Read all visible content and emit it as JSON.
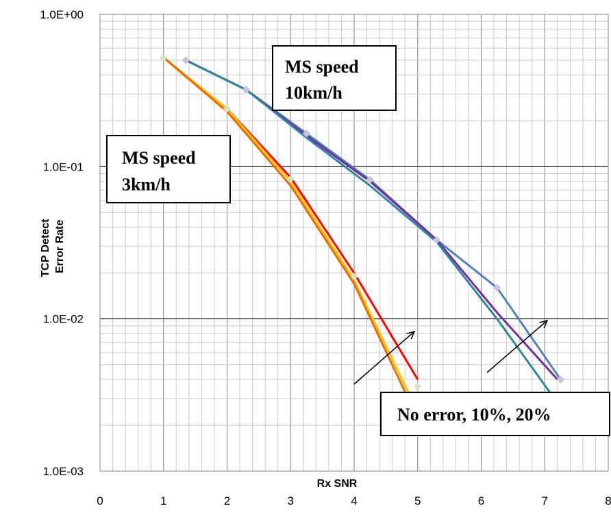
{
  "chart_data": {
    "type": "line",
    "title": "",
    "xlabel": "Rx SNR",
    "ylabel_lines": [
      "TCP Detect",
      "Error Rate"
    ],
    "x_scale": "linear",
    "y_scale": "log",
    "xlim": [
      0,
      8
    ],
    "ylim": [
      0.001,
      1
    ],
    "x_ticks": [
      "0",
      "1",
      "2",
      "3",
      "4",
      "5",
      "6",
      "7",
      "8"
    ],
    "y_ticks": [
      {
        "value": 1,
        "label": "1.0E+00"
      },
      {
        "value": 0.1,
        "label": "1.0E-01"
      },
      {
        "value": 0.01,
        "label": "1.0E-02"
      },
      {
        "value": 0.001,
        "label": "1.0E-03"
      }
    ],
    "grid": true,
    "legend": "none",
    "series": [
      {
        "color": "#FF0000",
        "marker": false,
        "x": [
          1,
          2,
          3,
          4,
          5
        ],
        "y": [
          0.52,
          0.24,
          0.085,
          0.02,
          0.004
        ]
      },
      {
        "color": "#FFC000",
        "marker": false,
        "x": [
          1,
          2,
          3,
          4,
          4.9
        ],
        "y": [
          0.52,
          0.24,
          0.08,
          0.018,
          0.003
        ]
      },
      {
        "color": "#E46C0A",
        "marker": false,
        "x": [
          1,
          2,
          3,
          4,
          4.85
        ],
        "y": [
          0.52,
          0.23,
          0.075,
          0.017,
          0.003
        ]
      },
      {
        "color": "#4F81BD",
        "marker": true,
        "x": [
          1.35,
          2.3,
          3.25,
          4.25,
          5.3,
          6.25,
          7.25
        ],
        "y": [
          0.5,
          0.32,
          0.165,
          0.082,
          0.033,
          0.016,
          0.004
        ]
      },
      {
        "color": "#7030A0",
        "marker": false,
        "x": [
          1.35,
          2.3,
          3.25,
          4.25,
          5.3,
          6.25,
          7.2
        ],
        "y": [
          0.5,
          0.32,
          0.16,
          0.08,
          0.033,
          0.011,
          0.004
        ]
      },
      {
        "color": "#31859C",
        "marker": false,
        "x": [
          1.35,
          2.3,
          3.25,
          4.25,
          5.3,
          6.25,
          7.15
        ],
        "y": [
          0.5,
          0.32,
          0.155,
          0.075,
          0.032,
          0.01,
          0.003
        ]
      }
    ],
    "point_markers": [
      {
        "color": "#D7E4BD",
        "x": [
          1,
          2,
          3,
          4,
          5
        ],
        "y": [
          0.52,
          0.24,
          0.083,
          0.019,
          0.0036
        ]
      },
      {
        "color": "#CCC1DA",
        "x": [
          1.35,
          2.3,
          3.25,
          4.25,
          5.3,
          6.25,
          7.25
        ],
        "y": [
          0.5,
          0.32,
          0.165,
          0.082,
          0.033,
          0.016,
          0.004
        ]
      }
    ],
    "annotations": [
      {
        "lines": [
          "MS speed",
          "10km/h"
        ]
      },
      {
        "lines": [
          "MS speed",
          "3km/h"
        ]
      },
      {
        "lines": [
          "No error, 10%, 20%"
        ]
      }
    ],
    "arrows": 2
  }
}
